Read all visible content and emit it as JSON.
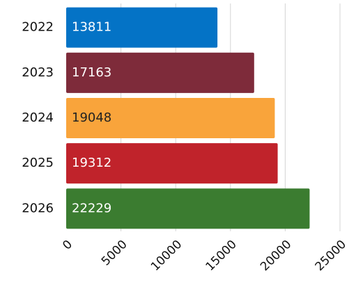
{
  "chart_data": {
    "type": "barh",
    "categories": [
      "2022",
      "2023",
      "2024",
      "2025",
      "2026"
    ],
    "values": [
      13811,
      17163,
      19048,
      19312,
      22229
    ],
    "colors": [
      "#0473c6",
      "#7e2b3a",
      "#f9a43b",
      "#c0232b",
      "#3b7c30"
    ],
    "xlim": [
      0,
      25000
    ],
    "xticks": [
      0,
      5000,
      10000,
      15000,
      20000,
      25000
    ],
    "grid": true,
    "value_labels_inside": true
  }
}
